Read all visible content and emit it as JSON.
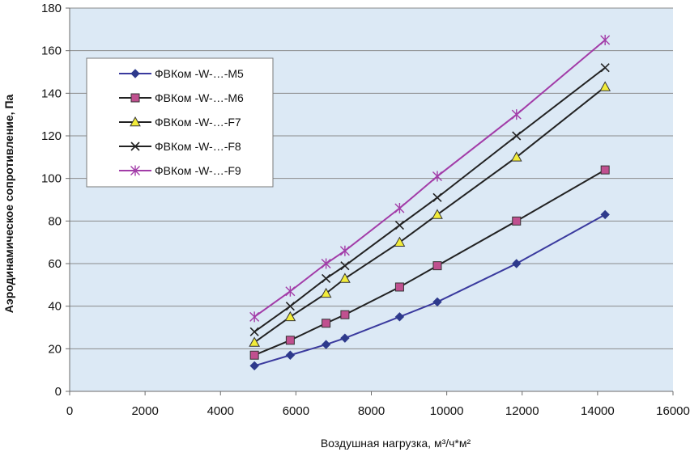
{
  "chart_data": {
    "type": "line",
    "title": "",
    "xlabel": "Воздушная нагрузка, м³/ч*м²",
    "ylabel": "Аэродинамическое сопротивление, Па",
    "xlim": [
      0,
      16000
    ],
    "ylim": [
      0,
      180
    ],
    "xticks": [
      0,
      2000,
      4000,
      6000,
      8000,
      10000,
      12000,
      14000,
      16000
    ],
    "yticks": [
      0,
      20,
      40,
      60,
      80,
      100,
      120,
      140,
      160,
      180
    ],
    "grid": "horizontal",
    "legend_position": "top-left",
    "plot_background": "#dce9f5",
    "x": [
      4900,
      5850,
      6800,
      7300,
      8750,
      9750,
      11850,
      14200
    ],
    "series": [
      {
        "name": "ФВКом -W-…-M5",
        "marker": "diamond",
        "color": "#3a3a9e",
        "marker_fill": "#2e3a8c",
        "values": [
          12,
          17,
          22,
          25,
          35,
          42,
          60,
          83
        ]
      },
      {
        "name": "ФВКом -W-…-M6",
        "marker": "square",
        "color": "#222222",
        "marker_fill": "#c0508f",
        "values": [
          17,
          24,
          32,
          36,
          49,
          59,
          80,
          104
        ]
      },
      {
        "name": "ФВКом -W-…-F7",
        "marker": "triangle",
        "color": "#222222",
        "marker_fill": "#f2ec3a",
        "values": [
          23,
          35,
          46,
          53,
          70,
          83,
          110,
          143
        ]
      },
      {
        "name": "ФВКом -W-…-F8",
        "marker": "x",
        "color": "#222222",
        "marker_fill": "#222222",
        "values": [
          28,
          40,
          53,
          59,
          78,
          91,
          120,
          152
        ]
      },
      {
        "name": "ФВКом -W-…-F9",
        "marker": "star",
        "color": "#a23ca8",
        "marker_fill": "#a23ca8",
        "values": [
          35,
          47,
          60,
          66,
          86,
          101,
          130,
          165
        ]
      }
    ]
  }
}
